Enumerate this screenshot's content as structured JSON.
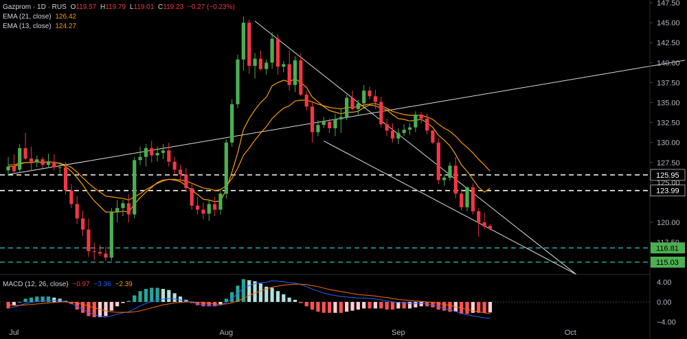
{
  "chart_data": {
    "type": "candlestick",
    "symbol": "Gazprom · 1D · RUS",
    "ohlc_legend": {
      "o_label": "O",
      "o": "119.57",
      "h_label": "H",
      "h": "119.79",
      "l_label": "L",
      "l": "119.01",
      "c_label": "C",
      "c": "119.23",
      "change": "−0.27 (−0.23%)"
    },
    "ema21": {
      "name": "EMA (21, close)",
      "value": "126.42",
      "color": "#ff9800"
    },
    "ema13": {
      "name": "EMA (13, close)",
      "value": "124.27",
      "color": "#f7a21b"
    },
    "macd": {
      "name": "MACD (12, 26, close)",
      "hist": "−0.97",
      "macd": "−3.36",
      "signal": "−2.39"
    },
    "price_ylim": [
      115.03,
      147.5
    ],
    "price_ticks": [
      "147.50",
      "145.00",
      "142.50",
      "140.00",
      "137.50",
      "135.00",
      "132.50",
      "130.00",
      "127.50",
      "125.00",
      "120.00",
      "117.50"
    ],
    "price_tick_values": [
      147.5,
      145,
      142.5,
      140,
      137.5,
      135,
      132.5,
      130,
      127.5,
      125,
      120,
      117.5
    ],
    "macd_ticks": [
      "4.00",
      "0.00",
      "−4.00"
    ],
    "macd_tick_values": [
      4,
      0,
      -4
    ],
    "x_ticks": [
      {
        "label": "Jul",
        "index": 1
      },
      {
        "label": "Aug",
        "index": 38
      },
      {
        "label": "Sep",
        "index": 68
      },
      {
        "label": "Oct",
        "index": 98
      }
    ],
    "horizontal_levels": [
      {
        "value": 125.95,
        "label": "125.95",
        "style": "dashed",
        "color": "#ffffff",
        "label_bg": "#000000",
        "label_color": "#ffffff"
      },
      {
        "value": 123.99,
        "label": "123.99",
        "style": "dashed",
        "color": "#ffffff",
        "label_bg": "#000000",
        "label_color": "#ffffff"
      },
      {
        "value": 116.81,
        "label": "116.81",
        "style": "dashed",
        "color": "#26a69a",
        "label_bg": "#4caf50",
        "label_color": "#000000"
      },
      {
        "value": 115.03,
        "label": "115.03",
        "style": "dashed",
        "color": "#26a69a",
        "label_bg": "#4caf50",
        "label_color": "#000000"
      }
    ],
    "trendlines": [
      {
        "from": [
          0,
          126.0
        ],
        "to": [
          118,
          140.3
        ]
      },
      {
        "from": [
          43,
          145.2
        ],
        "to": [
          99,
          113.5
        ]
      },
      {
        "from": [
          55,
          130.2
        ],
        "to": [
          99,
          113.5
        ]
      }
    ],
    "candles": [
      [
        126.5,
        128.2,
        125.8,
        127.0
      ],
      [
        127.0,
        128.5,
        126.2,
        126.4
      ],
      [
        126.6,
        129.8,
        126.2,
        129.3
      ],
      [
        129.3,
        131.2,
        127.8,
        128.0
      ],
      [
        128.0,
        129.5,
        126.5,
        127.6
      ],
      [
        127.6,
        128.4,
        126.9,
        127.9
      ],
      [
        127.9,
        128.2,
        126.8,
        127.2
      ],
      [
        127.2,
        128.6,
        126.8,
        127.6
      ],
      [
        127.6,
        128.5,
        126.5,
        126.9
      ],
      [
        126.9,
        127.5,
        126.0,
        126.9
      ],
      [
        126.9,
        127.6,
        123.5,
        124.0
      ],
      [
        124.0,
        124.8,
        121.8,
        122.3
      ],
      [
        122.3,
        123.3,
        119.8,
        120.5
      ],
      [
        120.5,
        121.5,
        118.3,
        119.1
      ],
      [
        119.1,
        120.5,
        115.7,
        116.4
      ],
      [
        116.4,
        117.5,
        115.3,
        116.3
      ],
      [
        116.3,
        117.2,
        115.8,
        116.1
      ],
      [
        116.1,
        117.0,
        115.2,
        115.6
      ],
      [
        115.6,
        121.8,
        115.2,
        121.3
      ],
      [
        121.3,
        122.8,
        120.0,
        121.8
      ],
      [
        121.8,
        122.8,
        120.8,
        122.4
      ],
      [
        122.4,
        123.5,
        120.0,
        121.0
      ],
      [
        121.0,
        128.2,
        120.5,
        127.8
      ],
      [
        127.8,
        129.5,
        127.2,
        128.2
      ],
      [
        128.2,
        129.8,
        127.0,
        129.3
      ],
      [
        129.3,
        130.2,
        127.5,
        128.4
      ],
      [
        128.4,
        129.5,
        127.6,
        128.7
      ],
      [
        128.7,
        129.8,
        127.9,
        129.0
      ],
      [
        129.0,
        130.0,
        127.0,
        127.6
      ],
      [
        127.6,
        128.2,
        126.0,
        126.6
      ],
      [
        126.6,
        127.2,
        125.2,
        126.0
      ],
      [
        126.0,
        126.8,
        123.8,
        124.3
      ],
      [
        124.3,
        124.8,
        121.6,
        122.1
      ],
      [
        122.1,
        123.2,
        121.0,
        121.6
      ],
      [
        121.6,
        122.5,
        120.4,
        121.1
      ],
      [
        121.1,
        122.8,
        120.2,
        122.3
      ],
      [
        122.3,
        123.2,
        120.8,
        121.6
      ],
      [
        121.6,
        124.2,
        121.0,
        123.6
      ],
      [
        123.6,
        130.4,
        123.0,
        130.0
      ],
      [
        130.0,
        135.4,
        129.5,
        134.8
      ],
      [
        134.8,
        141.0,
        134.3,
        140.4
      ],
      [
        140.4,
        145.8,
        139.0,
        145.0
      ],
      [
        145.0,
        145.4,
        138.6,
        139.6
      ],
      [
        139.6,
        141.2,
        138.0,
        140.5
      ],
      [
        140.5,
        141.5,
        139.0,
        139.2
      ],
      [
        139.2,
        140.4,
        138.5,
        140.0
      ],
      [
        140.0,
        143.8,
        139.2,
        143.0
      ],
      [
        143.0,
        143.5,
        138.5,
        139.5
      ],
      [
        139.5,
        140.2,
        138.8,
        139.8
      ],
      [
        139.8,
        141.5,
        136.5,
        137.2
      ],
      [
        137.2,
        140.8,
        136.3,
        140.3
      ],
      [
        140.3,
        141.2,
        135.8,
        136.0
      ],
      [
        136.0,
        136.5,
        134.0,
        134.5
      ],
      [
        134.5,
        135.0,
        130.0,
        131.3
      ],
      [
        131.3,
        132.8,
        130.8,
        132.2
      ],
      [
        132.2,
        133.2,
        131.8,
        132.6
      ],
      [
        132.6,
        133.0,
        131.2,
        131.8
      ],
      [
        131.8,
        133.6,
        130.8,
        132.9
      ],
      [
        132.9,
        134.2,
        131.2,
        133.2
      ],
      [
        133.2,
        136.0,
        132.8,
        135.6
      ],
      [
        135.6,
        136.5,
        134.0,
        134.2
      ],
      [
        134.2,
        135.4,
        133.4,
        134.9
      ],
      [
        134.9,
        137.2,
        134.2,
        136.5
      ],
      [
        136.5,
        137.0,
        135.4,
        135.8
      ],
      [
        135.8,
        136.6,
        134.2,
        135.1
      ],
      [
        135.1,
        135.7,
        131.9,
        132.3
      ],
      [
        132.3,
        133.0,
        130.8,
        131.5
      ],
      [
        131.5,
        132.4,
        130.0,
        130.5
      ],
      [
        130.5,
        131.8,
        129.8,
        131.2
      ],
      [
        131.2,
        132.3,
        130.8,
        131.6
      ],
      [
        131.6,
        132.4,
        131.0,
        131.9
      ],
      [
        131.9,
        133.9,
        131.3,
        133.5
      ],
      [
        133.5,
        133.8,
        132.4,
        133.0
      ],
      [
        133.0,
        133.6,
        131.0,
        131.5
      ],
      [
        131.5,
        131.6,
        129.8,
        130.0
      ],
      [
        130.0,
        130.6,
        124.8,
        125.3
      ],
      [
        125.3,
        126.0,
        124.6,
        125.6
      ],
      [
        125.6,
        127.5,
        125.2,
        127.1
      ],
      [
        127.1,
        128.2,
        123.0,
        123.6
      ],
      [
        123.6,
        124.2,
        121.5,
        121.9
      ],
      [
        121.9,
        124.5,
        121.4,
        124.4
      ],
      [
        124.4,
        124.9,
        121.0,
        121.4
      ],
      [
        121.4,
        121.8,
        118.2,
        120.0
      ],
      [
        120.0,
        121.2,
        119.2,
        119.5
      ],
      [
        119.57,
        119.79,
        119.01,
        119.23
      ]
    ],
    "ema21_values": [
      127.2,
      127.2,
      127.4,
      127.5,
      127.5,
      127.6,
      127.5,
      127.6,
      127.5,
      127.4,
      127.2,
      126.9,
      126.3,
      125.6,
      124.9,
      124.3,
      123.8,
      123.3,
      123.2,
      123.1,
      123.0,
      122.8,
      123.2,
      123.6,
      124.1,
      124.5,
      124.9,
      125.2,
      125.4,
      125.4,
      125.3,
      125.2,
      124.9,
      124.6,
      124.3,
      124.2,
      124.0,
      124.1,
      124.6,
      125.5,
      126.8,
      128.4,
      129.3,
      130.3,
      131.2,
      132.0,
      133.0,
      133.7,
      134.3,
      134.6,
      135.2,
      135.3,
      135.3,
      135.1,
      134.8,
      134.6,
      134.4,
      134.3,
      134.2,
      134.4,
      134.4,
      134.5,
      134.7,
      134.8,
      134.9,
      134.6,
      134.3,
      133.9,
      133.7,
      133.5,
      133.4,
      133.4,
      133.4,
      133.2,
      132.9,
      132.3,
      131.8,
      131.4,
      130.8,
      130.0,
      129.4,
      128.7,
      127.9,
      127.2,
      126.42
    ],
    "ema13_values": [
      127.0,
      127.0,
      127.3,
      127.5,
      127.5,
      127.6,
      127.5,
      127.6,
      127.5,
      127.4,
      127.0,
      126.4,
      125.6,
      124.7,
      123.6,
      122.7,
      122.0,
      121.3,
      121.3,
      121.3,
      121.4,
      121.3,
      122.3,
      123.1,
      123.8,
      124.4,
      125.0,
      125.3,
      125.4,
      125.3,
      125.1,
      124.6,
      124.0,
      123.5,
      122.9,
      122.8,
      122.6,
      122.7,
      124.1,
      126.3,
      128.7,
      131.6,
      133.0,
      134.1,
      135.0,
      135.7,
      137.1,
      137.5,
      137.8,
      137.6,
      138.0,
      137.5,
      136.9,
      135.7,
      135.1,
      134.5,
      134.0,
      133.8,
      133.6,
      133.8,
      133.8,
      133.9,
      134.4,
      134.7,
      134.6,
      134.3,
      134.1,
      133.5,
      133.0,
      132.9,
      132.7,
      132.8,
      132.9,
      132.5,
      131.9,
      130.9,
      130.3,
      129.6,
      128.5,
      127.2,
      126.4,
      125.4,
      124.4,
      123.8,
      124.27
    ],
    "macd_values": [
      -1.2,
      -1.0,
      -0.7,
      -0.3,
      -0.1,
      0.1,
      0.2,
      0.3,
      0.3,
      0.3,
      0.1,
      -0.3,
      -0.9,
      -1.5,
      -2.1,
      -2.6,
      -2.9,
      -3.1,
      -2.8,
      -2.5,
      -2.2,
      -2.0,
      -1.4,
      -0.8,
      -0.3,
      0.1,
      0.4,
      0.6,
      0.7,
      0.6,
      0.4,
      0.2,
      -0.1,
      -0.4,
      -0.6,
      -0.7,
      -0.8,
      -0.7,
      -0.1,
      0.7,
      1.7,
      2.8,
      3.3,
      3.7,
      3.9,
      4.0,
      4.3,
      4.2,
      4.1,
      3.9,
      3.8,
      3.5,
      3.1,
      2.6,
      2.2,
      1.8,
      1.5,
      1.3,
      1.1,
      1.0,
      0.9,
      0.8,
      0.8,
      0.7,
      0.6,
      0.4,
      0.2,
      0.0,
      -0.1,
      -0.2,
      -0.3,
      -0.3,
      -0.3,
      -0.4,
      -0.6,
      -1.0,
      -1.3,
      -1.6,
      -1.9,
      -2.3,
      -2.6,
      -2.8,
      -3.0,
      -3.2,
      -3.36
    ],
    "signal_values": [
      -0.6,
      -0.7,
      -0.7,
      -0.6,
      -0.5,
      -0.4,
      -0.3,
      -0.2,
      -0.1,
      0.0,
      0.0,
      -0.1,
      -0.2,
      -0.5,
      -0.8,
      -1.2,
      -1.5,
      -1.8,
      -2.0,
      -2.1,
      -2.1,
      -2.1,
      -2.0,
      -1.8,
      -1.5,
      -1.2,
      -0.9,
      -0.6,
      -0.4,
      -0.2,
      -0.1,
      0.0,
      0.0,
      -0.1,
      -0.2,
      -0.3,
      -0.4,
      -0.5,
      -0.4,
      -0.2,
      0.2,
      0.7,
      1.3,
      1.8,
      2.2,
      2.6,
      3.0,
      3.2,
      3.4,
      3.5,
      3.6,
      3.6,
      3.5,
      3.3,
      3.1,
      2.8,
      2.5,
      2.3,
      2.1,
      1.9,
      1.7,
      1.5,
      1.4,
      1.3,
      1.2,
      1.0,
      0.9,
      0.7,
      0.5,
      0.4,
      0.3,
      0.2,
      0.1,
      0.0,
      -0.1,
      -0.3,
      -0.5,
      -0.7,
      -1.0,
      -1.2,
      -1.5,
      -1.8,
      -2.0,
      -2.2,
      -2.39
    ],
    "colors": {
      "up": "#4caf50",
      "down": "#f23645",
      "hist_up_strong": "#26a69a",
      "hist_up_weak": "#b2dfdb",
      "hist_down_strong": "#ff5252",
      "hist_down_weak": "#ffcdd2",
      "macd_line": "#2962ff",
      "signal_line": "#ff6d00",
      "axis_text": "#b2b5be",
      "grid": "#1e222d",
      "trendline": "#e0e0e0"
    }
  }
}
